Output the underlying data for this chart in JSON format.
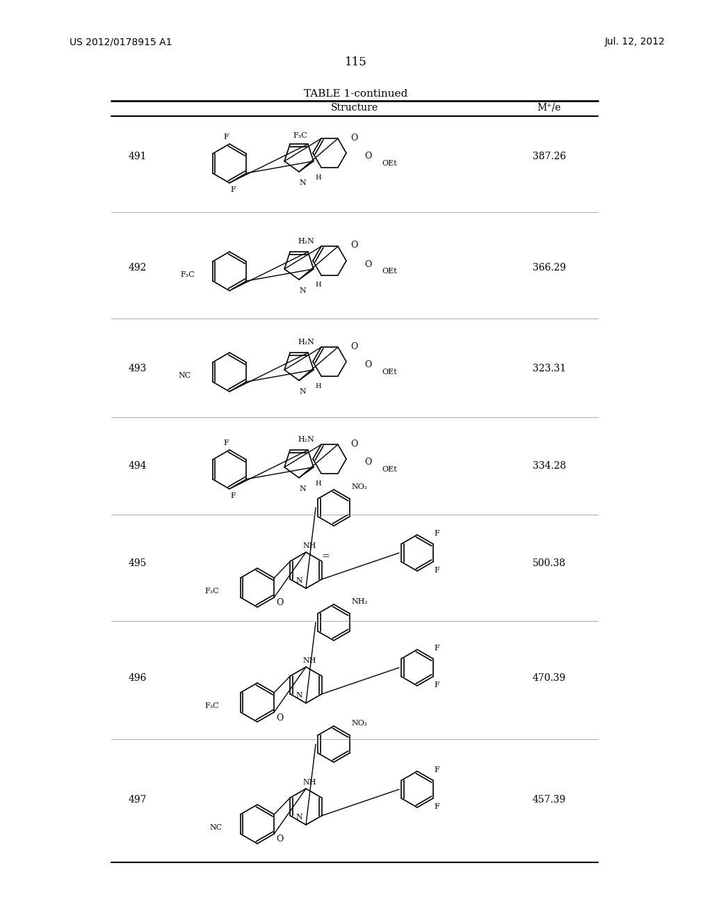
{
  "page_number": "115",
  "patent_number": "US 2012/0178915 A1",
  "date": "Jul. 12, 2012",
  "table_title": "TABLE 1-continued",
  "col_headers": [
    "Structure",
    "M⁺/e"
  ],
  "rows": [
    {
      "id": "491",
      "mz": "387.26"
    },
    {
      "id": "492",
      "mz": "366.29"
    },
    {
      "id": "493",
      "mz": "323.31"
    },
    {
      "id": "494",
      "mz": "334.28"
    },
    {
      "id": "495",
      "mz": "500.38"
    },
    {
      "id": "496",
      "mz": "470.39"
    },
    {
      "id": "497",
      "mz": "457.39"
    }
  ],
  "bg_color": "#ffffff",
  "text_color": "#000000",
  "line_color": "#000000"
}
